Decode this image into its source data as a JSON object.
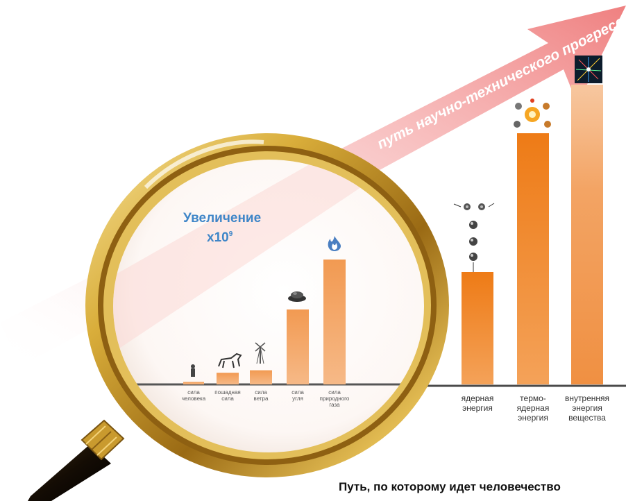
{
  "arrow_label": "путь научно-технического прогресса",
  "magnifier": {
    "line1": "Увеличение",
    "line2": "x10",
    "exponent": "9"
  },
  "caption": "Путь, по которому идет человечество",
  "colors": {
    "bar_light": "#f2a564",
    "bar_dark": "#ef7f1d",
    "arrow": "#f08a8a",
    "lens_rim": "#c8a02a",
    "magnifier_text": "#3f86c8"
  },
  "chart_data": {
    "type": "bar",
    "y_scale": "relative, no axis printed",
    "groups": [
      {
        "name": "inside_magnifier",
        "note": "values read as relative bar heights, magnified view",
        "categories": [
          "сила человека",
          "пошадная сила",
          "сила ветра",
          "сила угля",
          "сила природного газа"
        ],
        "labels": [
          [
            "сила",
            "человека"
          ],
          [
            "пошадная",
            "сила"
          ],
          [
            "сила",
            "ветра"
          ],
          [
            "сила",
            "угля"
          ],
          [
            "сила",
            "природного",
            "газа"
          ]
        ],
        "values": [
          3,
          14,
          17,
          90,
          150
        ],
        "icons": [
          "person-icon",
          "horse-icon",
          "windmill-icon",
          "coal-icon",
          "gas-flame-icon"
        ]
      },
      {
        "name": "outside_magnifier",
        "categories": [
          "ядерная энергия",
          "термо-ядерная энергия",
          "внутренняя энергия вещества"
        ],
        "labels": [
          [
            "ядерная",
            "энергия"
          ],
          [
            "термо-",
            "ядерная",
            "энергия"
          ],
          [
            "внутренняя",
            "энергия",
            "вещества"
          ]
        ],
        "values": [
          162,
          362,
          432
        ],
        "icons": [
          "nuclear-fission-icon",
          "fusion-icon",
          "particle-collision-icon"
        ]
      }
    ]
  }
}
